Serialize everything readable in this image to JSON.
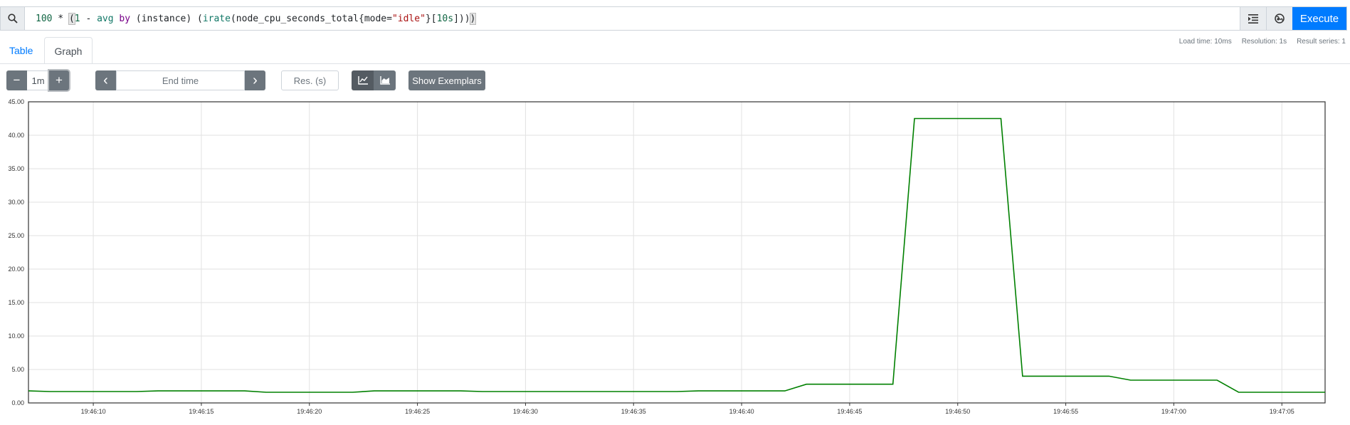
{
  "query": {
    "tokens": [
      {
        "t": "100",
        "c": "num"
      },
      {
        "t": " * ",
        "c": ""
      },
      {
        "t": "(",
        "c": "paren-hl"
      },
      {
        "t": "1",
        "c": "num"
      },
      {
        "t": " - ",
        "c": ""
      },
      {
        "t": "avg",
        "c": "fn"
      },
      {
        "t": " by ",
        "c": "kw"
      },
      {
        "t": "(instance) (",
        "c": ""
      },
      {
        "t": "irate",
        "c": "fn"
      },
      {
        "t": "(node_cpu_seconds_total{",
        "c": ""
      },
      {
        "t": "mode",
        "c": ""
      },
      {
        "t": "=",
        "c": ""
      },
      {
        "t": "\"idle\"",
        "c": "str"
      },
      {
        "t": "}[",
        "c": ""
      },
      {
        "t": "10s",
        "c": "num"
      },
      {
        "t": "]))",
        "c": ""
      },
      {
        "t": ")",
        "c": "paren-hl"
      }
    ],
    "execute_label": "Execute"
  },
  "icons": {
    "search": "search-icon",
    "format": "format-expression-icon",
    "metrics": "metrics-explorer-icon",
    "line_mode": "line-chart-icon",
    "stacked_mode": "stacked-chart-icon"
  },
  "tabs": [
    {
      "label": "Table",
      "active": false
    },
    {
      "label": "Graph",
      "active": true
    }
  ],
  "stats": {
    "load_time": "Load time: 10ms",
    "resolution": "Resolution: 1s",
    "result_series": "Result series: 1"
  },
  "controls": {
    "minus_label": "−",
    "range_value": "1m",
    "plus_label": "+",
    "prev_label": "‹",
    "end_time_placeholder": "End time",
    "next_label": "›",
    "resolution_placeholder": "Res. (s)",
    "exemplars_label": "Show Exemplars"
  },
  "colors": {
    "accent": "#007bff",
    "series": "#008000",
    "dark_button": "#6c757d"
  },
  "chart_data": {
    "type": "line",
    "ylim": [
      0,
      45
    ],
    "yticks": [
      0,
      5,
      10,
      15,
      20,
      25,
      30,
      35,
      40,
      45
    ],
    "ytick_labels": [
      "0.00",
      "5.00",
      "10.00",
      "15.00",
      "20.00",
      "25.00",
      "30.00",
      "35.00",
      "40.00",
      "45.00"
    ],
    "xlim": [
      7,
      67
    ],
    "xticks": [
      10,
      15,
      20,
      25,
      30,
      35,
      40,
      45,
      50,
      55,
      60,
      65
    ],
    "xtick_labels": [
      "19:46:10",
      "19:46:15",
      "19:46:20",
      "19:46:25",
      "19:46:30",
      "19:46:35",
      "19:46:40",
      "19:46:45",
      "19:46:50",
      "19:46:55",
      "19:47:00",
      "19:47:05"
    ],
    "grid": true,
    "series": [
      {
        "color": "#008000",
        "x": [
          7,
          8,
          10,
          12,
          13,
          15,
          17,
          18,
          20,
          22,
          23,
          25,
          27,
          28,
          30,
          32,
          33,
          35,
          37,
          38,
          40,
          42,
          43,
          45,
          47,
          48,
          50,
          52,
          53,
          55,
          57,
          58,
          60,
          62,
          63,
          65,
          67
        ],
        "y": [
          1.8,
          1.7,
          1.7,
          1.7,
          1.8,
          1.8,
          1.8,
          1.6,
          1.6,
          1.6,
          1.8,
          1.8,
          1.8,
          1.7,
          1.7,
          1.7,
          1.7,
          1.7,
          1.7,
          1.8,
          1.8,
          1.8,
          2.8,
          2.8,
          2.8,
          42.5,
          42.5,
          42.5,
          4.0,
          4.0,
          4.0,
          3.4,
          3.4,
          3.4,
          1.6,
          1.6,
          1.6
        ]
      }
    ]
  }
}
